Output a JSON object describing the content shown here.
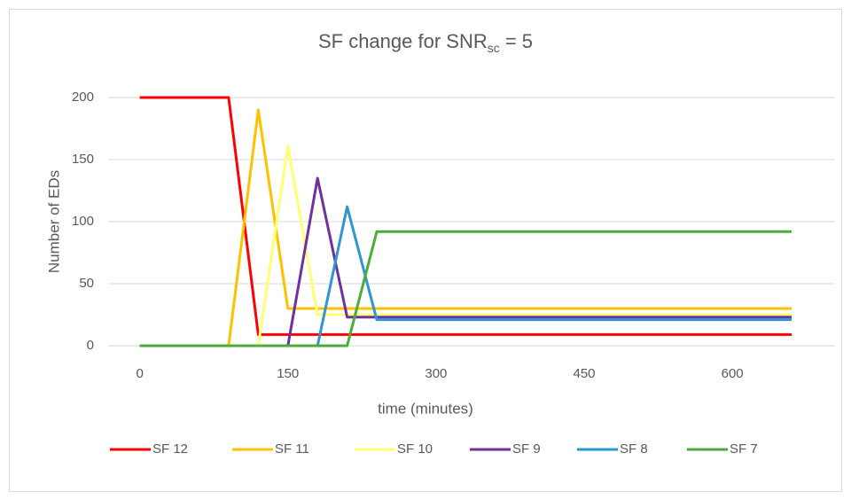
{
  "chart_data": {
    "type": "line",
    "title": [
      "SF change for SNR",
      "sc",
      " = 5"
    ],
    "xlabel": "time (minutes)",
    "ylabel": "Number of EDs",
    "x": [
      0,
      30,
      60,
      90,
      120,
      150,
      180,
      210,
      240,
      270,
      300,
      330,
      360,
      390,
      420,
      450,
      480,
      510,
      540,
      570,
      600,
      630,
      660
    ],
    "xlim": [
      -32,
      704
    ],
    "xticks": [
      0,
      150,
      300,
      450,
      600
    ],
    "ylim": [
      0,
      200
    ],
    "yticks": [
      0,
      50,
      100,
      150,
      200
    ],
    "grid": true,
    "legend": "bottom",
    "series": [
      {
        "name": "SF 12",
        "color": "#ff0000",
        "values": [
          200,
          200,
          200,
          200,
          9,
          9,
          9,
          9,
          9,
          9,
          9,
          9,
          9,
          9,
          9,
          9,
          9,
          9,
          9,
          9,
          9,
          9,
          9
        ]
      },
      {
        "name": "SF 11",
        "color": "#ffc000",
        "values": [
          0,
          0,
          0,
          0,
          190,
          30,
          30,
          30,
          30,
          30,
          30,
          30,
          30,
          30,
          30,
          30,
          30,
          30,
          30,
          30,
          30,
          30,
          30
        ]
      },
      {
        "name": "SF 10",
        "color": "#ffff75",
        "values": [
          0,
          0,
          0,
          0,
          0,
          161,
          25,
          25,
          25,
          25,
          25,
          25,
          25,
          25,
          25,
          25,
          25,
          25,
          25,
          25,
          25,
          25,
          25
        ]
      },
      {
        "name": "SF 9",
        "color": "#7030a0",
        "values": [
          0,
          0,
          0,
          0,
          0,
          0,
          135,
          23,
          23,
          23,
          23,
          23,
          23,
          23,
          23,
          23,
          23,
          23,
          23,
          23,
          23,
          23,
          23
        ]
      },
      {
        "name": "SF 8",
        "color": "#2e96d1",
        "values": [
          0,
          0,
          0,
          0,
          0,
          0,
          0,
          112,
          21,
          21,
          21,
          21,
          21,
          21,
          21,
          21,
          21,
          21,
          21,
          21,
          21,
          21,
          21
        ]
      },
      {
        "name": "SF 7",
        "color": "#4aad3a",
        "values": [
          0,
          0,
          0,
          0,
          0,
          0,
          0,
          0,
          92,
          92,
          92,
          92,
          92,
          92,
          92,
          92,
          92,
          92,
          92,
          92,
          92,
          92,
          92
        ]
      }
    ]
  }
}
